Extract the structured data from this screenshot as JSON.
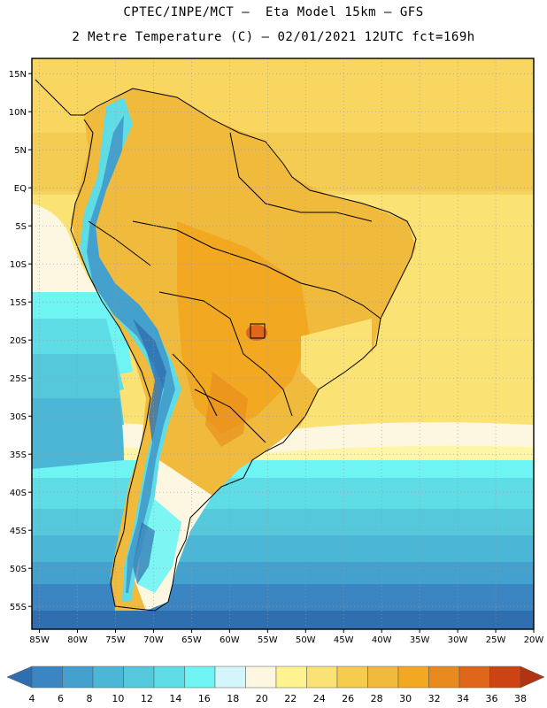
{
  "header": {
    "line1": "CPTEC/INPE/MCT –  Eta Model 15km – GFS",
    "line2": "2 Metre Temperature (C) – 02/01/2021 12UTC fct=169h"
  },
  "axes": {
    "lat_labels": [
      "15N",
      "10N",
      "5N",
      "EQ",
      "5S",
      "10S",
      "15S",
      "20S",
      "25S",
      "30S",
      "35S",
      "40S",
      "45S",
      "50S",
      "55S"
    ],
    "lon_labels": [
      "85W",
      "80W",
      "75W",
      "70W",
      "65W",
      "60W",
      "55W",
      "50W",
      "45W",
      "40W",
      "35W",
      "30W",
      "25W",
      "20W"
    ]
  },
  "colorbar": {
    "labels": [
      "4",
      "6",
      "8",
      "10",
      "12",
      "14",
      "16",
      "18",
      "20",
      "22",
      "24",
      "26",
      "28",
      "30",
      "32",
      "34",
      "36",
      "38"
    ],
    "colors": [
      "#2f6fb0",
      "#3b86c2",
      "#44a1cd",
      "#4cb6d6",
      "#55c8dc",
      "#5fdde6",
      "#6ff4f4",
      "#d4f6fb",
      "#fdf7e2",
      "#fff38f",
      "#fbe274",
      "#f5cc4e",
      "#f0ba3c",
      "#f2a820",
      "#e88a1d",
      "#e0671a",
      "#cc4414",
      "#b23310"
    ]
  },
  "map": {
    "lat_range": [
      -58,
      17
    ],
    "lon_range": [
      -86,
      -20
    ]
  }
}
